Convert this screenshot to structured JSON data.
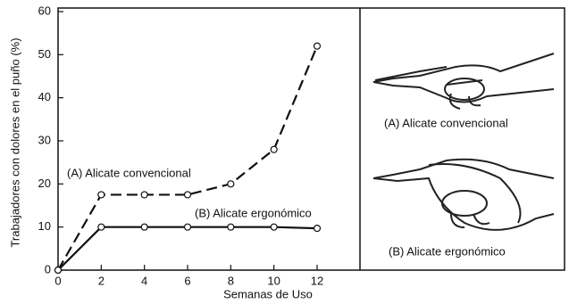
{
  "chart_data": {
    "type": "line",
    "y_label": "Trabajadores con dolores en el puño (%)",
    "x_label": "Semanas de Uso",
    "x": [
      0,
      2,
      4,
      6,
      8,
      10,
      12
    ],
    "series": [
      {
        "name": "(A) Alicate convencional",
        "color": "#111111",
        "style": "dashed",
        "values": [
          0,
          17.5,
          17.5,
          17.5,
          20,
          28,
          52
        ]
      },
      {
        "name": "(B) Alicate ergonómico",
        "color": "#111111",
        "style": "solid",
        "values": [
          0,
          10,
          10,
          10,
          10,
          10,
          9.7
        ]
      }
    ],
    "xlim": [
      0,
      12
    ],
    "xticks": [
      0,
      2,
      4,
      6,
      8,
      10,
      12
    ],
    "ylim": [
      0,
      60
    ],
    "yticks": [
      0,
      10,
      20,
      30,
      40,
      50,
      60
    ],
    "illustrations": [
      {
        "caption": "(A) Alicate convencional"
      },
      {
        "caption": "(B) Alicate ergonómico"
      }
    ]
  }
}
